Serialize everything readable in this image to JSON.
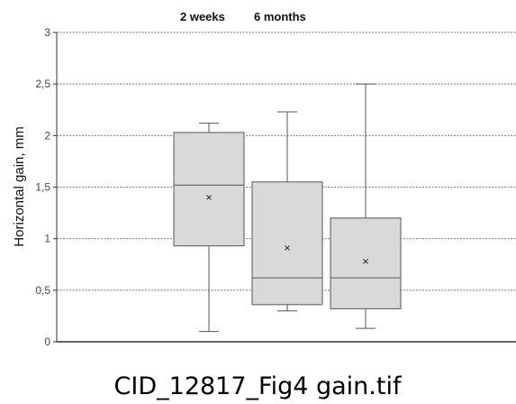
{
  "chart_data": {
    "type": "box",
    "legend": [
      "2 weeks",
      "6 months"
    ],
    "legend_position": "top",
    "ylabel": "Horizontal gain, mm",
    "ylim": [
      0,
      3
    ],
    "yticks": [
      0,
      0.5,
      1,
      1.5,
      2,
      2.5,
      3
    ],
    "ytick_labels": [
      "0",
      "0,5",
      "1",
      "1,5",
      "2",
      "2,5",
      "3"
    ],
    "grid": "horizontal dashed",
    "box_fill": "#d9d9d9",
    "box_stroke": "#555555",
    "series": [
      {
        "min": 0.1,
        "q1": 0.93,
        "median": 1.52,
        "q3": 2.03,
        "max": 2.12,
        "mean": 1.4
      },
      {
        "min": 0.3,
        "q1": 0.36,
        "median": 0.62,
        "q3": 1.55,
        "max": 2.23,
        "mean": 0.91
      },
      {
        "min": 0.13,
        "q1": 0.32,
        "median": 0.62,
        "q3": 1.2,
        "max": 2.5,
        "mean": 0.78
      }
    ]
  },
  "caption": "CID_12817_Fig4 gain.tif"
}
